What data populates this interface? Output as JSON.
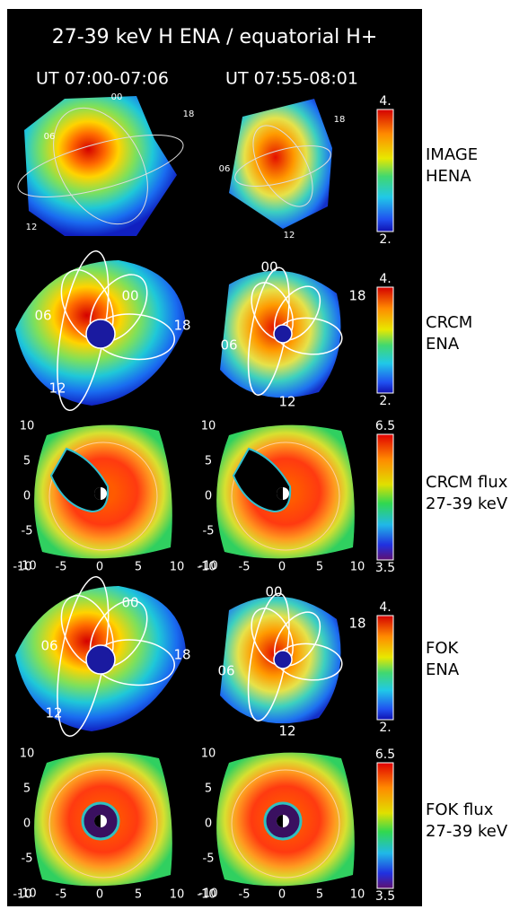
{
  "title": "27-39 keV H ENA / equatorial H+",
  "columns": [
    "UT 07:00-07:06",
    "UT 07:55-08:01"
  ],
  "rows": [
    {
      "label": [
        "IMAGE",
        "HENA"
      ],
      "colorbar": {
        "max": "4.",
        "min": "2."
      },
      "panels": [
        {
          "lt": [
            "00",
            "06",
            "12",
            "18"
          ]
        },
        {
          "lt": [
            "18",
            "06",
            "12"
          ]
        }
      ]
    },
    {
      "label": [
        "CRCM",
        "ENA"
      ],
      "colorbar": {
        "max": "4.",
        "min": "2."
      },
      "panels": [
        {
          "lt": [
            "00",
            "06",
            "18",
            "12"
          ]
        },
        {
          "lt": [
            "00",
            "18",
            "06",
            "12"
          ]
        }
      ]
    },
    {
      "label": [
        "CRCM flux",
        "27-39 keV"
      ],
      "colorbar": {
        "max": "6.5",
        "min": "3.5"
      },
      "axes": {
        "yticks": [
          10,
          5,
          0,
          -5,
          -10
        ],
        "xticks": [
          -10,
          -5,
          0,
          5,
          10
        ]
      }
    },
    {
      "label": [
        "FOK",
        "ENA"
      ],
      "colorbar": {
        "max": "4.",
        "min": "2."
      },
      "panels": [
        {
          "lt": [
            "00",
            "06",
            "18",
            "12"
          ]
        },
        {
          "lt": [
            "00",
            "18",
            "06",
            "12"
          ]
        }
      ]
    },
    {
      "label": [
        "FOK flux",
        "27-39 keV"
      ],
      "colorbar": {
        "max": "6.5",
        "min": "3.5"
      },
      "axes": {
        "yticks": [
          10,
          5,
          0,
          -5,
          -10
        ],
        "xticks": [
          -10,
          -5,
          0,
          5,
          10
        ]
      }
    }
  ]
}
